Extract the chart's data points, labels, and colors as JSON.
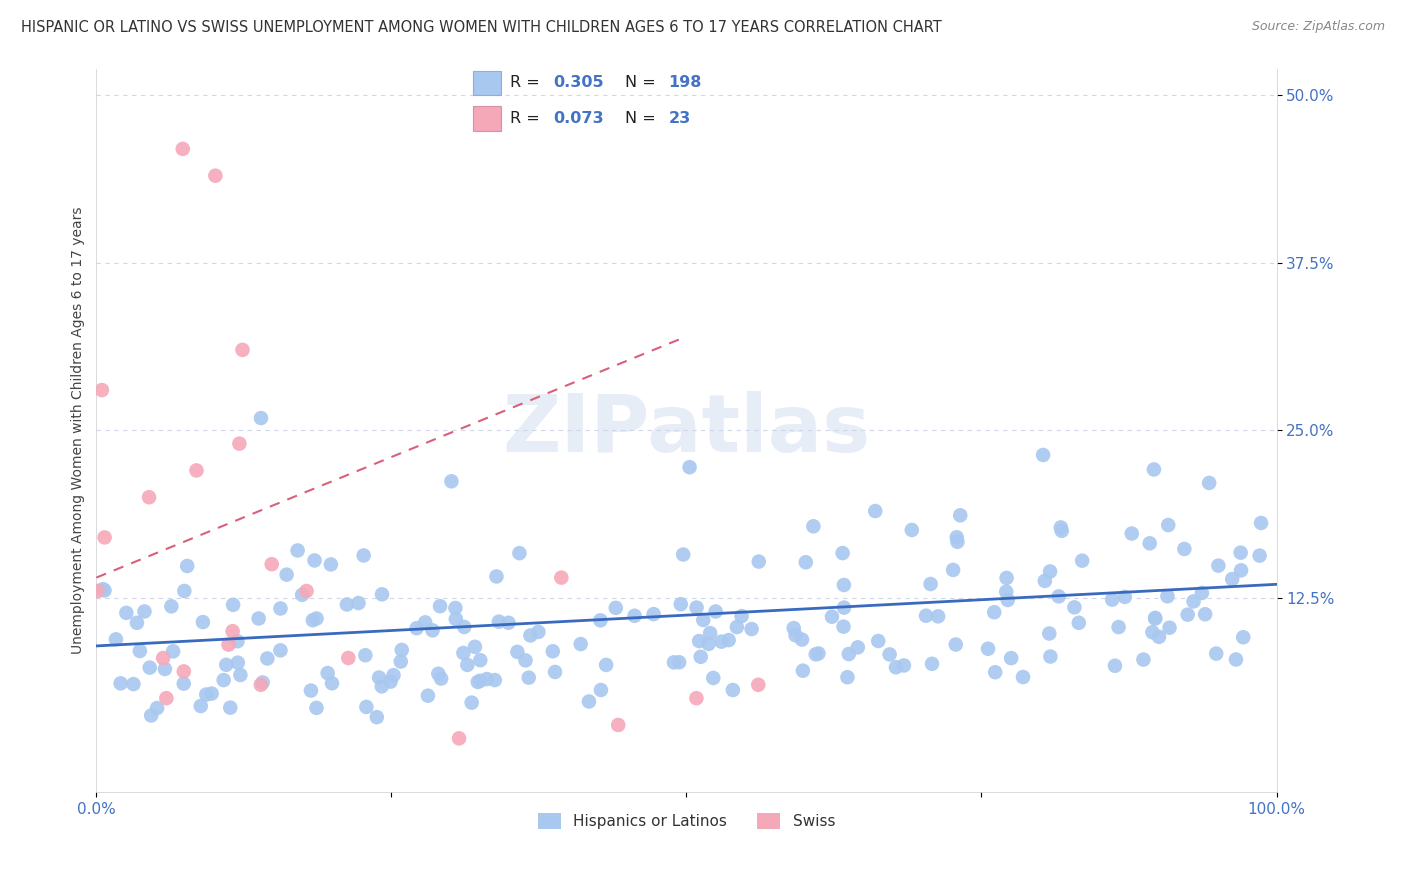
{
  "title": "HISPANIC OR LATINO VS SWISS UNEMPLOYMENT AMONG WOMEN WITH CHILDREN AGES 6 TO 17 YEARS CORRELATION CHART",
  "source": "Source: ZipAtlas.com",
  "ylabel": "Unemployment Among Women with Children Ages 6 to 17 years",
  "xlim": [
    0,
    1
  ],
  "ylim": [
    -0.02,
    0.52
  ],
  "yticks": [
    0.125,
    0.25,
    0.375,
    0.5
  ],
  "ytick_labels": [
    "12.5%",
    "25.0%",
    "37.5%",
    "50.0%"
  ],
  "xticks": [
    0.0,
    0.25,
    0.5,
    0.75,
    1.0
  ],
  "xtick_labels": [
    "0.0%",
    "",
    "",
    "",
    "100.0%"
  ],
  "blue_color": "#a8c8f0",
  "pink_color": "#f5a8b8",
  "blue_line_color": "#3a6abf",
  "pink_line_color": "#d9607a",
  "R_blue": 0.305,
  "N_blue": 198,
  "R_pink": 0.073,
  "N_pink": 23,
  "legend_label_blue": "Hispanics or Latinos",
  "legend_label_pink": "Swiss",
  "watermark": "ZIPatlas",
  "background_color": "#ffffff",
  "grid_color": "#d0d8e8",
  "annotation_color": "#4472c4",
  "blue_n": 198,
  "pink_n": 23,
  "blue_trend_x": [
    0,
    1
  ],
  "blue_trend_y": [
    0.089,
    0.135
  ],
  "pink_trend_x": [
    0,
    0.5
  ],
  "pink_trend_y": [
    0.14,
    0.32
  ]
}
